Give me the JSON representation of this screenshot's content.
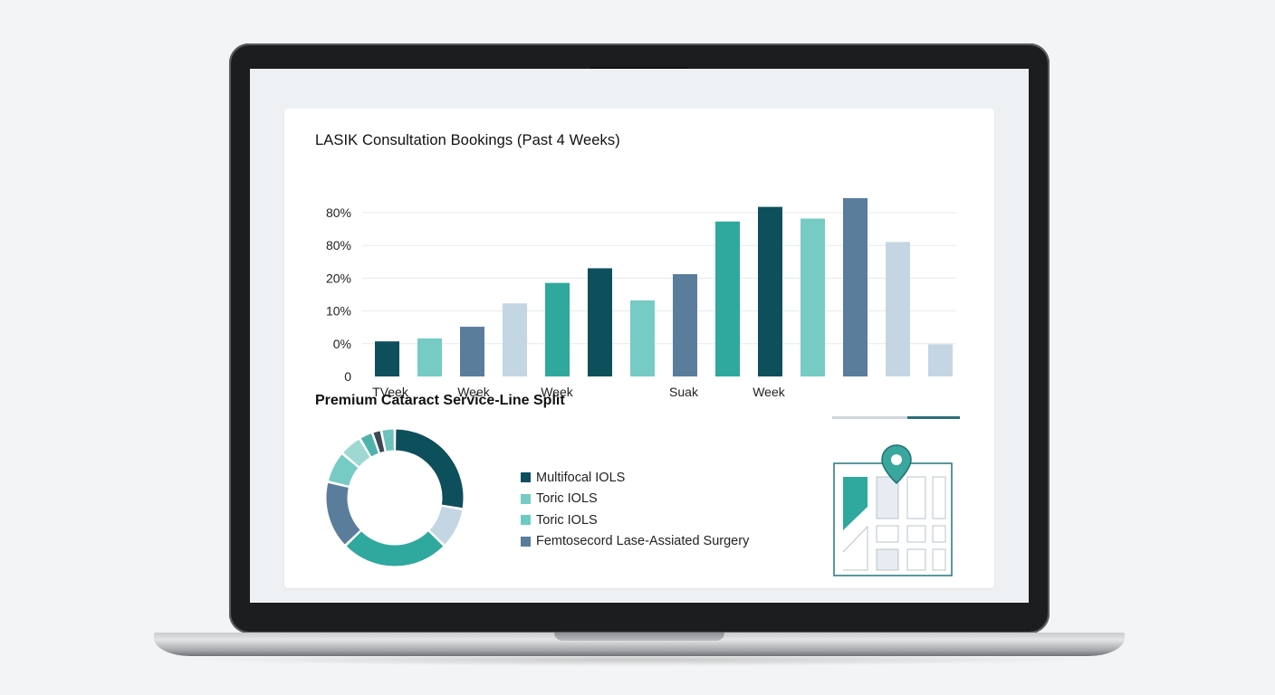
{
  "colors": {
    "dark_teal": "#0e4f5c",
    "light_teal": "#76cbc5",
    "slate_blue": "#5a7d9c",
    "pale_blue": "#c4d6e3",
    "teal": "#2fa89e",
    "charcoal": "#3d4a55"
  },
  "chart_data": [
    {
      "type": "bar",
      "title": "LASIK Consultation Bookings (Past 4 Weeks)",
      "y_tick_labels": [
        "0",
        "0%",
        "10%",
        "20%",
        "80%",
        "80%"
      ],
      "x_tick_labels": [
        "TVeek",
        "Week",
        "Week",
        "Suak",
        "Week"
      ],
      "values": [
        12,
        13,
        17,
        25,
        32,
        37,
        26,
        35,
        53,
        58,
        54,
        61,
        46,
        11
      ],
      "bar_colors": [
        "#0e4f5c",
        "#76cbc5",
        "#5a7d9c",
        "#c4d6e3",
        "#2fa89e",
        "#0e4f5c",
        "#76cbc5",
        "#5a7d9c",
        "#2fa89e",
        "#0e4f5c",
        "#76cbc5",
        "#5a7d9c",
        "#c4d6e3",
        "#c4d6e3"
      ],
      "grid": true,
      "legend": "none"
    },
    {
      "type": "pie",
      "title": "Premium Cataract Service-Line Split",
      "values": [
        26,
        9,
        24,
        15,
        7,
        5,
        3,
        2,
        3
      ],
      "colors": [
        "#0e4f5c",
        "#c4d6e3",
        "#2fa89e",
        "#5a7d9c",
        "#76cbc5",
        "#9fd8d3",
        "#4fb3ab",
        "#3d4a55",
        "#6ec2bb"
      ],
      "donut": true,
      "legend": "right",
      "legend_entries": [
        {
          "label": "Multifocal IOLS",
          "color": "#0e4f5c"
        },
        {
          "label": "Toric IOLS",
          "color": "#76cbc5"
        },
        {
          "label": "Toric IOLS",
          "color": "#6ccac4"
        },
        {
          "label": "Femtosecord Lase-Assiated Surgery",
          "color": "#5a7d9c"
        }
      ]
    }
  ],
  "slider": {
    "value_fraction": 0.59
  },
  "map_icon": "location-pin-icon"
}
